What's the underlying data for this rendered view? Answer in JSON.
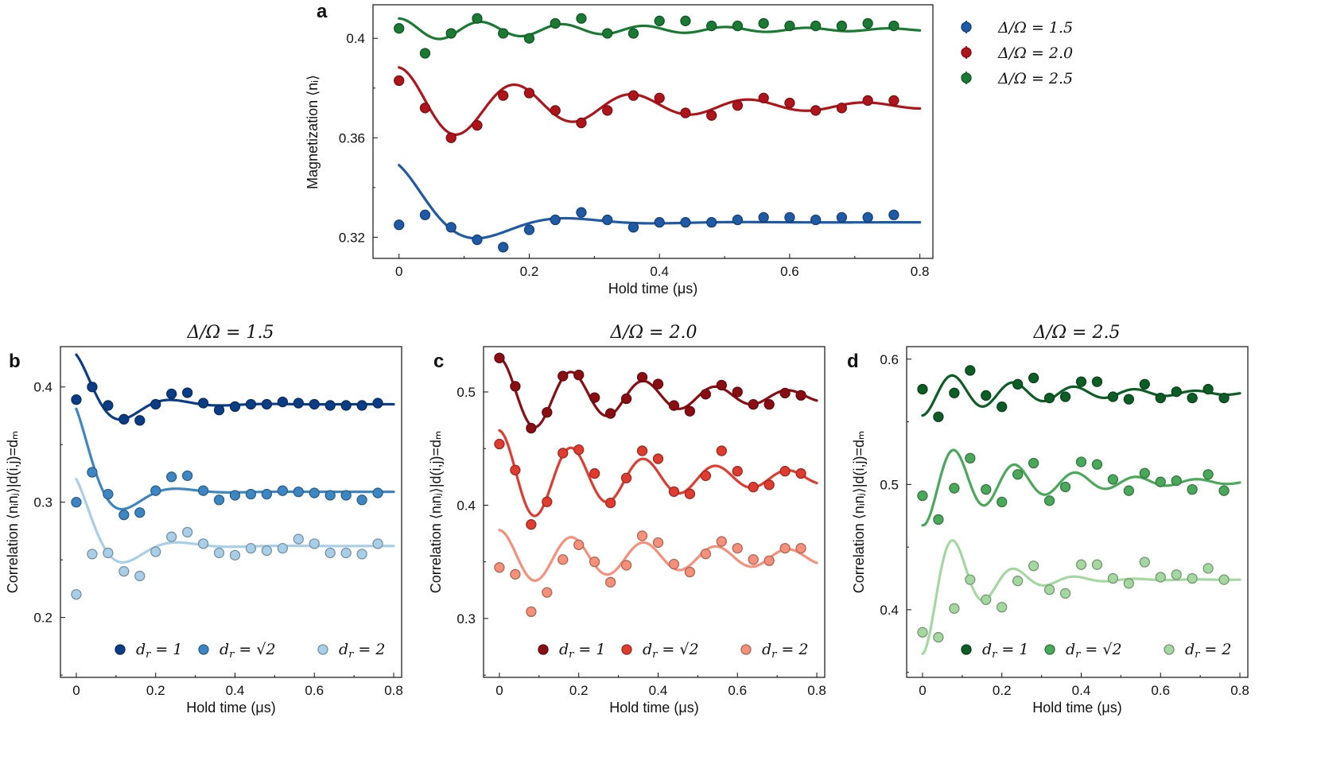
{
  "figure": {
    "panel_a_legend": [
      {
        "label": "Δ/Ω = 1.5",
        "color": "#1f5aa6"
      },
      {
        "label": "Δ/Ω = 2.0",
        "color": "#b0141b"
      },
      {
        "label": "Δ/Ω = 2.5",
        "color": "#1a7a33"
      }
    ]
  },
  "chart_data": [
    {
      "id": "a",
      "type": "scatter",
      "panel_label": "a",
      "title": "",
      "xlabel": "Hold time (μs)",
      "ylabel": "Magnetization ⟨nᵢ⟩",
      "xlim": [
        -0.04,
        0.82
      ],
      "ylim": [
        0.3115,
        0.4135
      ],
      "xticks": [
        0,
        0.2,
        0.4,
        0.6,
        0.8
      ],
      "xtick_labels": [
        "0",
        "0.2",
        "0.4",
        "0.6",
        "0.8"
      ],
      "yticks": [
        0.32,
        0.36,
        0.4
      ],
      "ytick_labels": [
        "0.32",
        "0.36",
        "0.4"
      ],
      "legend": "outside-right",
      "series": [
        {
          "name": "Δ/Ω = 1.5",
          "color": "#1f5aa6",
          "x": [
            0,
            0.04,
            0.08,
            0.12,
            0.16,
            0.2,
            0.24,
            0.28,
            0.32,
            0.36,
            0.4,
            0.44,
            0.48,
            0.52,
            0.56,
            0.6,
            0.64,
            0.68,
            0.72,
            0.76
          ],
          "y": [
            0.325,
            0.329,
            0.324,
            0.319,
            0.316,
            0.323,
            0.327,
            0.33,
            0.327,
            0.324,
            0.326,
            0.326,
            0.326,
            0.327,
            0.328,
            0.328,
            0.327,
            0.328,
            0.328,
            0.329
          ],
          "fit": {
            "offset": 0.326,
            "amp": 0.023,
            "tau": 0.1,
            "omega": 23.0,
            "phase": 0
          }
        },
        {
          "name": "Δ/Ω = 2.0",
          "color": "#b0141b",
          "x": [
            0,
            0.04,
            0.08,
            0.12,
            0.16,
            0.2,
            0.24,
            0.28,
            0.32,
            0.36,
            0.4,
            0.44,
            0.48,
            0.52,
            0.56,
            0.6,
            0.64,
            0.68,
            0.72,
            0.76
          ],
          "y": [
            0.383,
            0.372,
            0.36,
            0.365,
            0.377,
            0.378,
            0.371,
            0.366,
            0.371,
            0.377,
            0.376,
            0.37,
            0.369,
            0.373,
            0.376,
            0.374,
            0.371,
            0.372,
            0.375,
            0.375
          ],
          "fit": {
            "offset": 0.3728,
            "amp": 0.0155,
            "tau": 0.3,
            "omega": 35.0,
            "phase": 0
          }
        },
        {
          "name": "Δ/Ω = 2.5",
          "color": "#1a7a33",
          "x": [
            0,
            0.04,
            0.08,
            0.12,
            0.16,
            0.2,
            0.24,
            0.28,
            0.32,
            0.36,
            0.4,
            0.44,
            0.48,
            0.52,
            0.56,
            0.6,
            0.64,
            0.68,
            0.72,
            0.76
          ],
          "y": [
            0.404,
            0.394,
            0.402,
            0.408,
            0.402,
            0.4,
            0.406,
            0.408,
            0.402,
            0.402,
            0.407,
            0.407,
            0.405,
            0.405,
            0.406,
            0.405,
            0.405,
            0.405,
            0.406,
            0.405
          ],
          "fit": {
            "offset": 0.4035,
            "amp": 0.0045,
            "tau": 0.35,
            "omega": 50.0,
            "phase": 0
          }
        }
      ]
    },
    {
      "id": "b",
      "type": "scatter",
      "panel_label": "b",
      "title": "Δ/Ω = 1.5",
      "xlabel": "Hold time (μs)",
      "ylabel": "Correlation ⟨nᵢnⱼ⟩|d(i,j)=dₘ",
      "xlim": [
        -0.04,
        0.82
      ],
      "ylim": [
        0.148,
        0.435
      ],
      "xticks": [
        0,
        0.2,
        0.4,
        0.6,
        0.8
      ],
      "xtick_labels": [
        "0",
        "0.2",
        "0.4",
        "0.6",
        "0.8"
      ],
      "yticks": [
        0.2,
        0.3,
        0.4
      ],
      "ytick_labels": [
        "0.2",
        "0.3",
        "0.4"
      ],
      "legend": "bottom",
      "series": [
        {
          "name": "d_r = 1",
          "color": "#0b3d86",
          "x": [
            0,
            0.04,
            0.08,
            0.12,
            0.16,
            0.2,
            0.24,
            0.28,
            0.32,
            0.36,
            0.4,
            0.44,
            0.48,
            0.52,
            0.56,
            0.6,
            0.64,
            0.68,
            0.72,
            0.76
          ],
          "y": [
            0.389,
            0.4,
            0.384,
            0.372,
            0.371,
            0.385,
            0.394,
            0.395,
            0.386,
            0.38,
            0.383,
            0.385,
            0.385,
            0.387,
            0.386,
            0.385,
            0.384,
            0.384,
            0.384,
            0.386
          ],
          "fit": {
            "offset": 0.385,
            "amp": 0.043,
            "tau": 0.1,
            "omega": 25.0,
            "phase": 0
          }
        },
        {
          "name": "d_r = √2",
          "color": "#3d86c4",
          "x": [
            0,
            0.04,
            0.08,
            0.12,
            0.16,
            0.2,
            0.24,
            0.28,
            0.32,
            0.36,
            0.4,
            0.44,
            0.48,
            0.52,
            0.56,
            0.6,
            0.64,
            0.68,
            0.72,
            0.76
          ],
          "y": [
            0.3,
            0.326,
            0.307,
            0.289,
            0.291,
            0.31,
            0.322,
            0.323,
            0.31,
            0.302,
            0.306,
            0.307,
            0.307,
            0.31,
            0.309,
            0.308,
            0.306,
            0.306,
            0.302,
            0.308
          ],
          "fit": {
            "offset": 0.309,
            "amp": 0.072,
            "tau": 0.08,
            "omega": 23.0,
            "phase": 0
          }
        },
        {
          "name": "d_r = 2",
          "color": "#a9cfe8",
          "x": [
            0,
            0.04,
            0.08,
            0.12,
            0.16,
            0.2,
            0.24,
            0.28,
            0.32,
            0.36,
            0.4,
            0.44,
            0.48,
            0.52,
            0.56,
            0.6,
            0.64,
            0.68,
            0.72,
            0.76
          ],
          "y": [
            0.22,
            0.255,
            0.256,
            0.24,
            0.236,
            0.257,
            0.27,
            0.274,
            0.264,
            0.256,
            0.254,
            0.26,
            0.258,
            0.26,
            0.268,
            0.264,
            0.256,
            0.256,
            0.255,
            0.264
          ],
          "fit": {
            "offset": 0.262,
            "amp": 0.058,
            "tau": 0.09,
            "omega": 23.0,
            "phase": 0
          }
        }
      ]
    },
    {
      "id": "c",
      "type": "scatter",
      "panel_label": "c",
      "title": "Δ/Ω = 2.0",
      "xlabel": "Hold time (μs)",
      "ylabel": "Correlation ⟨nᵢnⱼ⟩|d(i,j)=dₘ",
      "xlim": [
        -0.04,
        0.82
      ],
      "ylim": [
        0.248,
        0.54
      ],
      "xticks": [
        0,
        0.2,
        0.4,
        0.6,
        0.8
      ],
      "xtick_labels": [
        "0",
        "0.2",
        "0.4",
        "0.6",
        "0.8"
      ],
      "yticks": [
        0.3,
        0.4,
        0.5
      ],
      "ytick_labels": [
        "0.3",
        "0.4",
        "0.5"
      ],
      "legend": "bottom",
      "series": [
        {
          "name": "d_r = 1",
          "color": "#8b0d14",
          "x": [
            0,
            0.04,
            0.08,
            0.12,
            0.16,
            0.2,
            0.24,
            0.28,
            0.32,
            0.36,
            0.4,
            0.44,
            0.48,
            0.52,
            0.56,
            0.6,
            0.64,
            0.68,
            0.72,
            0.76
          ],
          "y": [
            0.53,
            0.505,
            0.468,
            0.482,
            0.514,
            0.515,
            0.495,
            0.481,
            0.494,
            0.513,
            0.507,
            0.488,
            0.483,
            0.498,
            0.506,
            0.5,
            0.489,
            0.489,
            0.499,
            0.497
          ],
          "fit": {
            "offset": 0.496,
            "amp": 0.034,
            "tau": 0.4,
            "omega": 34.5,
            "phase": 0
          }
        },
        {
          "name": "d_r = √2",
          "color": "#e03b2f",
          "x": [
            0,
            0.04,
            0.08,
            0.12,
            0.16,
            0.2,
            0.24,
            0.28,
            0.32,
            0.36,
            0.4,
            0.44,
            0.48,
            0.52,
            0.56,
            0.6,
            0.64,
            0.68,
            0.72,
            0.76
          ],
          "y": [
            0.454,
            0.431,
            0.383,
            0.403,
            0.446,
            0.449,
            0.428,
            0.402,
            0.424,
            0.448,
            0.441,
            0.412,
            0.41,
            0.426,
            0.448,
            0.43,
            0.416,
            0.418,
            0.43,
            0.428
          ],
          "fit": {
            "offset": 0.424,
            "amp": 0.042,
            "tau": 0.4,
            "omega": 34.5,
            "phase": 0
          }
        },
        {
          "name": "d_r = 2",
          "color": "#f6907a",
          "x": [
            0,
            0.04,
            0.08,
            0.12,
            0.16,
            0.2,
            0.24,
            0.28,
            0.32,
            0.36,
            0.4,
            0.44,
            0.48,
            0.52,
            0.56,
            0.6,
            0.64,
            0.68,
            0.72,
            0.76
          ],
          "y": [
            0.345,
            0.339,
            0.306,
            0.323,
            0.352,
            0.365,
            0.35,
            0.332,
            0.347,
            0.373,
            0.367,
            0.348,
            0.341,
            0.357,
            0.368,
            0.362,
            0.352,
            0.351,
            0.362,
            0.362
          ],
          "fit": {
            "offset": 0.354,
            "amp": 0.024,
            "tau": 0.6,
            "omega": 34.5,
            "phase": 0
          }
        }
      ]
    },
    {
      "id": "d",
      "type": "scatter",
      "panel_label": "d",
      "title": "Δ/Ω = 2.5",
      "xlabel": "Hold time (μs)",
      "ylabel": "Correlation ⟨nᵢnⱼ⟩|d(i,j)=dₘ",
      "xlim": [
        -0.04,
        0.82
      ],
      "ylim": [
        0.346,
        0.61
      ],
      "xticks": [
        0,
        0.2,
        0.4,
        0.6,
        0.8
      ],
      "xtick_labels": [
        "0",
        "0.2",
        "0.4",
        "0.6",
        "0.8"
      ],
      "yticks": [
        0.4,
        0.5,
        0.6
      ],
      "ytick_labels": [
        "0.4",
        "0.5",
        "0.6"
      ],
      "legend": "bottom",
      "series": [
        {
          "name": "d_r = 1",
          "color": "#0d5d26",
          "x": [
            0,
            0.04,
            0.08,
            0.12,
            0.16,
            0.2,
            0.24,
            0.28,
            0.32,
            0.36,
            0.4,
            0.44,
            0.48,
            0.52,
            0.56,
            0.6,
            0.64,
            0.68,
            0.72,
            0.76
          ],
          "y": [
            0.576,
            0.554,
            0.573,
            0.591,
            0.571,
            0.562,
            0.58,
            0.585,
            0.569,
            0.57,
            0.582,
            0.582,
            0.57,
            0.568,
            0.58,
            0.569,
            0.574,
            0.569,
            0.576,
            0.569
          ],
          "fit": {
            "offset": 0.573,
            "amp": -0.018,
            "tau": 0.3,
            "omega": 41.0,
            "phase": 0
          }
        },
        {
          "name": "d_r = √2",
          "color": "#4aa85a",
          "x": [
            0,
            0.04,
            0.08,
            0.12,
            0.16,
            0.2,
            0.24,
            0.28,
            0.32,
            0.36,
            0.4,
            0.44,
            0.48,
            0.52,
            0.56,
            0.6,
            0.64,
            0.68,
            0.72,
            0.76
          ],
          "y": [
            0.491,
            0.472,
            0.497,
            0.521,
            0.496,
            0.486,
            0.508,
            0.517,
            0.487,
            0.498,
            0.518,
            0.516,
            0.504,
            0.495,
            0.509,
            0.502,
            0.503,
            0.496,
            0.508,
            0.495
          ],
          "fit": {
            "offset": 0.502,
            "amp": -0.035,
            "tau": 0.25,
            "omega": 41.0,
            "phase": -0.15
          }
        },
        {
          "name": "d_r = 2",
          "color": "#a5d7a0",
          "x": [
            0,
            0.04,
            0.08,
            0.12,
            0.16,
            0.2,
            0.24,
            0.28,
            0.32,
            0.36,
            0.4,
            0.44,
            0.48,
            0.52,
            0.56,
            0.6,
            0.64,
            0.68,
            0.72,
            0.76
          ],
          "y": [
            0.382,
            0.378,
            0.401,
            0.424,
            0.408,
            0.402,
            0.423,
            0.435,
            0.416,
            0.413,
            0.436,
            0.436,
            0.425,
            0.421,
            0.438,
            0.426,
            0.428,
            0.425,
            0.433,
            0.424
          ],
          "fit": {
            "offset": 0.424,
            "amp": -0.06,
            "tau": 0.12,
            "omega": 41.0,
            "phase": -0.15
          }
        }
      ]
    }
  ]
}
